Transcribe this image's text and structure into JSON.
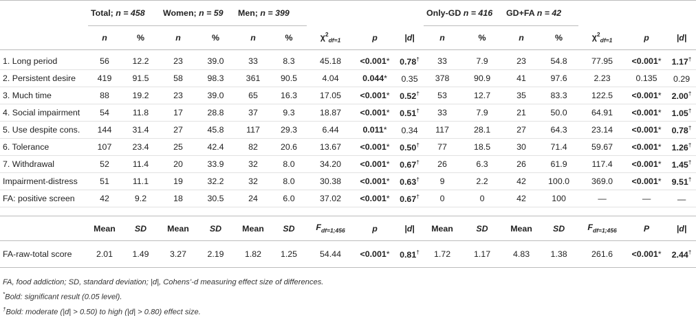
{
  "header": {
    "groups": {
      "total_label": "Total; ",
      "total_n_eq": "n = 458",
      "women_label": "Women; ",
      "women_n_eq": "n = 59",
      "men_label": "Men; ",
      "men_n_eq": "n = 399",
      "onlygd_label": "Only-GD ",
      "onlygd_n_eq": "n = 416",
      "gdfa_label": "GD+FA ",
      "gdfa_n_eq": "n = 42"
    },
    "sub": {
      "n": "n",
      "pct": "%",
      "chi": "χ",
      "chi_sup": "2",
      "chi_sub": "df=1",
      "p": "p",
      "d": "|d|"
    }
  },
  "rows": [
    {
      "label": "1. Long period",
      "tn": "56",
      "tp": "12.2",
      "wn": "23",
      "wp": "39.0",
      "mn": "33",
      "mp": "8.3",
      "chi": "45.18",
      "p": "<0.001",
      "p_mark": "*",
      "d": "0.78",
      "d_mark": "†",
      "on": "33",
      "op": "7.9",
      "gn": "23",
      "gp": "54.8",
      "chi2": "77.95",
      "p2": "<0.001",
      "p2_mark": "*",
      "d2": "1.17",
      "d2_mark": "†"
    },
    {
      "label": "2. Persistent desire",
      "tn": "419",
      "tp": "91.5",
      "wn": "58",
      "wp": "98.3",
      "mn": "361",
      "mp": "90.5",
      "chi": "4.04",
      "p": "0.044",
      "p_mark": "*",
      "d": "0.35",
      "d_mark": "",
      "on": "378",
      "op": "90.9",
      "gn": "41",
      "gp": "97.6",
      "chi2": "2.23",
      "p2": "0.135",
      "p2_mark": "",
      "d2": "0.29",
      "d2_mark": ""
    },
    {
      "label": "3. Much time",
      "tn": "88",
      "tp": "19.2",
      "wn": "23",
      "wp": "39.0",
      "mn": "65",
      "mp": "16.3",
      "chi": "17.05",
      "p": "<0.001",
      "p_mark": "*",
      "d": "0.52",
      "d_mark": "†",
      "on": "53",
      "op": "12.7",
      "gn": "35",
      "gp": "83.3",
      "chi2": "122.5",
      "p2": "<0.001",
      "p2_mark": "*",
      "d2": "2.00",
      "d2_mark": "†"
    },
    {
      "label": "4. Social impairment",
      "tn": "54",
      "tp": "11.8",
      "wn": "17",
      "wp": "28.8",
      "mn": "37",
      "mp": "9.3",
      "chi": "18.87",
      "p": "<0.001",
      "p_mark": "*",
      "d": "0.51",
      "d_mark": "†",
      "on": "33",
      "op": "7.9",
      "gn": "21",
      "gp": "50.0",
      "chi2": "64.91",
      "p2": "<0.001",
      "p2_mark": "*",
      "d2": "1.05",
      "d2_mark": "†"
    },
    {
      "label": "5. Use despite cons.",
      "tn": "144",
      "tp": "31.4",
      "wn": "27",
      "wp": "45.8",
      "mn": "117",
      "mp": "29.3",
      "chi": "6.44",
      "p": "0.011",
      "p_mark": "*",
      "d": "0.34",
      "d_mark": "",
      "on": "117",
      "op": "28.1",
      "gn": "27",
      "gp": "64.3",
      "chi2": "23.14",
      "p2": "<0.001",
      "p2_mark": "*",
      "d2": "0.78",
      "d2_mark": "†"
    },
    {
      "label": "6. Tolerance",
      "tn": "107",
      "tp": "23.4",
      "wn": "25",
      "wp": "42.4",
      "mn": "82",
      "mp": "20.6",
      "chi": "13.67",
      "p": "<0.001",
      "p_mark": "*",
      "d": "0.50",
      "d_mark": "†",
      "on": "77",
      "op": "18.5",
      "gn": "30",
      "gp": "71.4",
      "chi2": "59.67",
      "p2": "<0.001",
      "p2_mark": "*",
      "d2": "1.26",
      "d2_mark": "†"
    },
    {
      "label": "7. Withdrawal",
      "tn": "52",
      "tp": "11.4",
      "wn": "20",
      "wp": "33.9",
      "mn": "32",
      "mp": "8.0",
      "chi": "34.20",
      "p": "<0.001",
      "p_mark": "*",
      "d": "0.67",
      "d_mark": "†",
      "on": "26",
      "op": "6.3",
      "gn": "26",
      "gp": "61.9",
      "chi2": "117.4",
      "p2": "<0.001",
      "p2_mark": "*",
      "d2": "1.45",
      "d2_mark": "†"
    },
    {
      "label": "Impairment-distress",
      "tn": "51",
      "tp": "11.1",
      "wn": "19",
      "wp": "32.2",
      "mn": "32",
      "mp": "8.0",
      "chi": "30.38",
      "p": "<0.001",
      "p_mark": "*",
      "d": "0.63",
      "d_mark": "†",
      "on": "9",
      "op": "2.2",
      "gn": "42",
      "gp": "100.0",
      "chi2": "369.0",
      "p2": "<0.001",
      "p2_mark": "*",
      "d2": "9.51",
      "d2_mark": "†"
    },
    {
      "label": "FA: positive screen",
      "tn": "42",
      "tp": "9.2",
      "wn": "18",
      "wp": "30.5",
      "mn": "24",
      "mp": "6.0",
      "chi": "37.02",
      "p": "<0.001",
      "p_mark": "*",
      "d": "0.67",
      "d_mark": "†",
      "on": "0",
      "op": "0",
      "gn": "42",
      "gp": "100",
      "chi2": "—",
      "p2": "—",
      "p2_mark": "",
      "d2": "—",
      "d2_mark": ""
    }
  ],
  "header3": {
    "mean": "Mean",
    "sd": "SD",
    "f": "F",
    "f_sub": "df=1;456",
    "p": "p",
    "p_cap": "P",
    "d": "|d|"
  },
  "raw": {
    "label": "FA-raw-total score",
    "tm": "2.01",
    "tsd": "1.49",
    "wm": "3.27",
    "wsd": "2.19",
    "mm": "1.82",
    "msd": "1.25",
    "f": "54.44",
    "p": "<0.001",
    "p_mark": "*",
    "d": "0.81",
    "d_mark": "†",
    "om": "1.72",
    "osd": "1.17",
    "gm": "4.83",
    "gsd": "1.38",
    "f2": "261.6",
    "p2": "<0.001",
    "p2_mark": "*",
    "d2": "2.44",
    "d2_mark": "†"
  },
  "notes": {
    "line1": "FA, food addiction; SD, standard deviation; |d|, Cohens’-d measuring effect size of differences.",
    "line2_mark": "*",
    "line2": "Bold: significant result (0.05 level).",
    "line3_mark": "†",
    "line3": "Bold: moderate (|d| > 0.50) to high (|d| > 0.80) effect size."
  }
}
